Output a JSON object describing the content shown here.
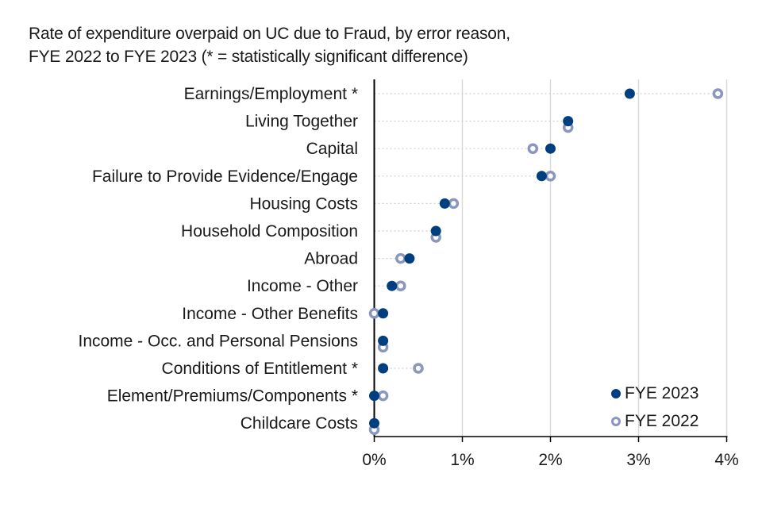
{
  "title": {
    "line1": "Rate of expenditure overpaid on UC due to Fraud, by error reason,",
    "line2": "FYE 2022 to FYE 2023 (* = statistically significant difference)"
  },
  "legend": {
    "items": [
      {
        "label": "FYE 2023",
        "style": "filled",
        "color": "#003f7f"
      },
      {
        "label": "FYE 2022",
        "style": "hollow",
        "color": "#8a97bc"
      }
    ]
  },
  "colors": {
    "fye2023": "#003f7f",
    "fye2022": "#8a97bc",
    "grid": "#d9d9d9",
    "axis": "#000000"
  },
  "chart_data": {
    "type": "dumbbell",
    "title": "Rate of expenditure overpaid on UC due to Fraud, by error reason, FYE 2022 to FYE 2023 (* = statistically significant difference)",
    "xlabel": "",
    "ylabel": "",
    "xlim": [
      0,
      4
    ],
    "x_ticks": [
      "0%",
      "1%",
      "2%",
      "3%",
      "4%"
    ],
    "grid": "vertical",
    "legend_position": "bottom-right",
    "categories": [
      "Earnings/Employment *",
      "Living Together",
      "Capital",
      "Failure to Provide Evidence/Engage",
      "Housing Costs",
      "Household Composition",
      "Abroad",
      "Income - Other",
      "Income - Other Benefits",
      "Income - Occ. and Personal Pensions",
      "Conditions of Entitlement *",
      "Element/Premiums/Components *",
      "Childcare Costs"
    ],
    "series": [
      {
        "name": "FYE 2023",
        "values": [
          2.9,
          2.2,
          2.0,
          1.9,
          0.8,
          0.7,
          0.4,
          0.2,
          0.1,
          0.1,
          0.1,
          0.0,
          0.0
        ]
      },
      {
        "name": "FYE 2022",
        "values": [
          3.9,
          2.2,
          1.8,
          2.0,
          0.9,
          0.7,
          0.3,
          0.3,
          0.0,
          0.1,
          0.5,
          0.1,
          0.0
        ]
      }
    ],
    "unit": "%"
  }
}
